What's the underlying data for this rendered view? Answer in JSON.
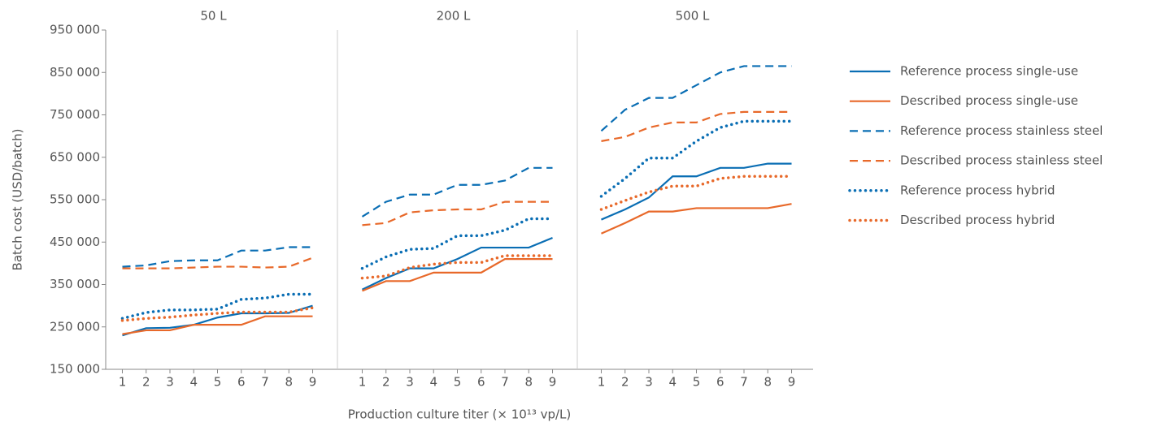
{
  "chart_data": {
    "type": "line",
    "ylabel": "Batch cost (USD/batch)",
    "xlabel": "Production culture titer (× 10¹³ vp/L)",
    "x": [
      1,
      2,
      3,
      4,
      5,
      6,
      7,
      8,
      9
    ],
    "xlim": [
      0.3,
      9.7
    ],
    "xticks": [
      1,
      2,
      3,
      4,
      5,
      6,
      7,
      8,
      9
    ],
    "ylim": [
      150000,
      950000
    ],
    "yticks": [
      {
        "value": 150000,
        "label": "150 000"
      },
      {
        "value": 250000,
        "label": "250 000"
      },
      {
        "value": 350000,
        "label": "350 000"
      },
      {
        "value": 450000,
        "label": "450 000"
      },
      {
        "value": 550000,
        "label": "550 000"
      },
      {
        "value": 650000,
        "label": "650 000"
      },
      {
        "value": 750000,
        "label": "750 000"
      },
      {
        "value": 850000,
        "label": "850 000"
      },
      {
        "value": 950000,
        "label": "950 000"
      }
    ],
    "series": [
      {
        "name": "Reference process single-use",
        "color": "#0a6eb4",
        "linestyle": "solid"
      },
      {
        "name": "Described process single-use",
        "color": "#e8692a",
        "linestyle": "solid"
      },
      {
        "name": "Reference process stainless steel",
        "color": "#0a6eb4",
        "linestyle": "dashed"
      },
      {
        "name": "Described process stainless steel",
        "color": "#e8692a",
        "linestyle": "dashed"
      },
      {
        "name": "Reference process hybrid",
        "color": "#0a6eb4",
        "linestyle": "dotted"
      },
      {
        "name": "Described process hybrid",
        "color": "#e8692a",
        "linestyle": "dotted"
      }
    ],
    "panels": [
      {
        "title": "50 L",
        "values": [
          [
            230000,
            247000,
            248000,
            255000,
            272000,
            282000,
            282000,
            283000,
            300000
          ],
          [
            233000,
            242000,
            242000,
            255000,
            255000,
            255000,
            275000,
            275000,
            275000
          ],
          [
            392000,
            395000,
            405000,
            407000,
            407000,
            430000,
            430000,
            438000,
            438000
          ],
          [
            388000,
            388000,
            388000,
            390000,
            392000,
            392000,
            390000,
            392000,
            413000
          ],
          [
            270000,
            284000,
            290000,
            290000,
            292000,
            315000,
            318000,
            327000,
            327000
          ],
          [
            265000,
            270000,
            273000,
            278000,
            282000,
            285000,
            285000,
            285000,
            295000
          ]
        ]
      },
      {
        "title": "200 L",
        "values": [
          [
            338000,
            365000,
            388000,
            388000,
            410000,
            437000,
            437000,
            437000,
            460000
          ],
          [
            335000,
            358000,
            358000,
            378000,
            378000,
            378000,
            410000,
            410000,
            410000
          ],
          [
            510000,
            545000,
            562000,
            562000,
            585000,
            585000,
            595000,
            625000,
            625000
          ],
          [
            490000,
            495000,
            520000,
            525000,
            527000,
            527000,
            545000,
            545000,
            545000
          ],
          [
            388000,
            415000,
            433000,
            435000,
            465000,
            465000,
            478000,
            505000,
            505000
          ],
          [
            365000,
            370000,
            390000,
            398000,
            402000,
            402000,
            418000,
            418000,
            418000
          ]
        ]
      },
      {
        "title": "500 L",
        "values": [
          [
            503000,
            527000,
            555000,
            605000,
            605000,
            625000,
            625000,
            635000,
            635000
          ],
          [
            470000,
            495000,
            522000,
            522000,
            530000,
            530000,
            530000,
            530000,
            540000
          ],
          [
            712000,
            762000,
            790000,
            790000,
            820000,
            850000,
            865000,
            865000,
            865000
          ],
          [
            688000,
            698000,
            720000,
            732000,
            732000,
            752000,
            757000,
            757000,
            757000
          ],
          [
            558000,
            600000,
            648000,
            648000,
            688000,
            720000,
            735000,
            735000,
            735000
          ],
          [
            527000,
            548000,
            568000,
            582000,
            582000,
            600000,
            605000,
            605000,
            605000
          ]
        ]
      }
    ]
  }
}
